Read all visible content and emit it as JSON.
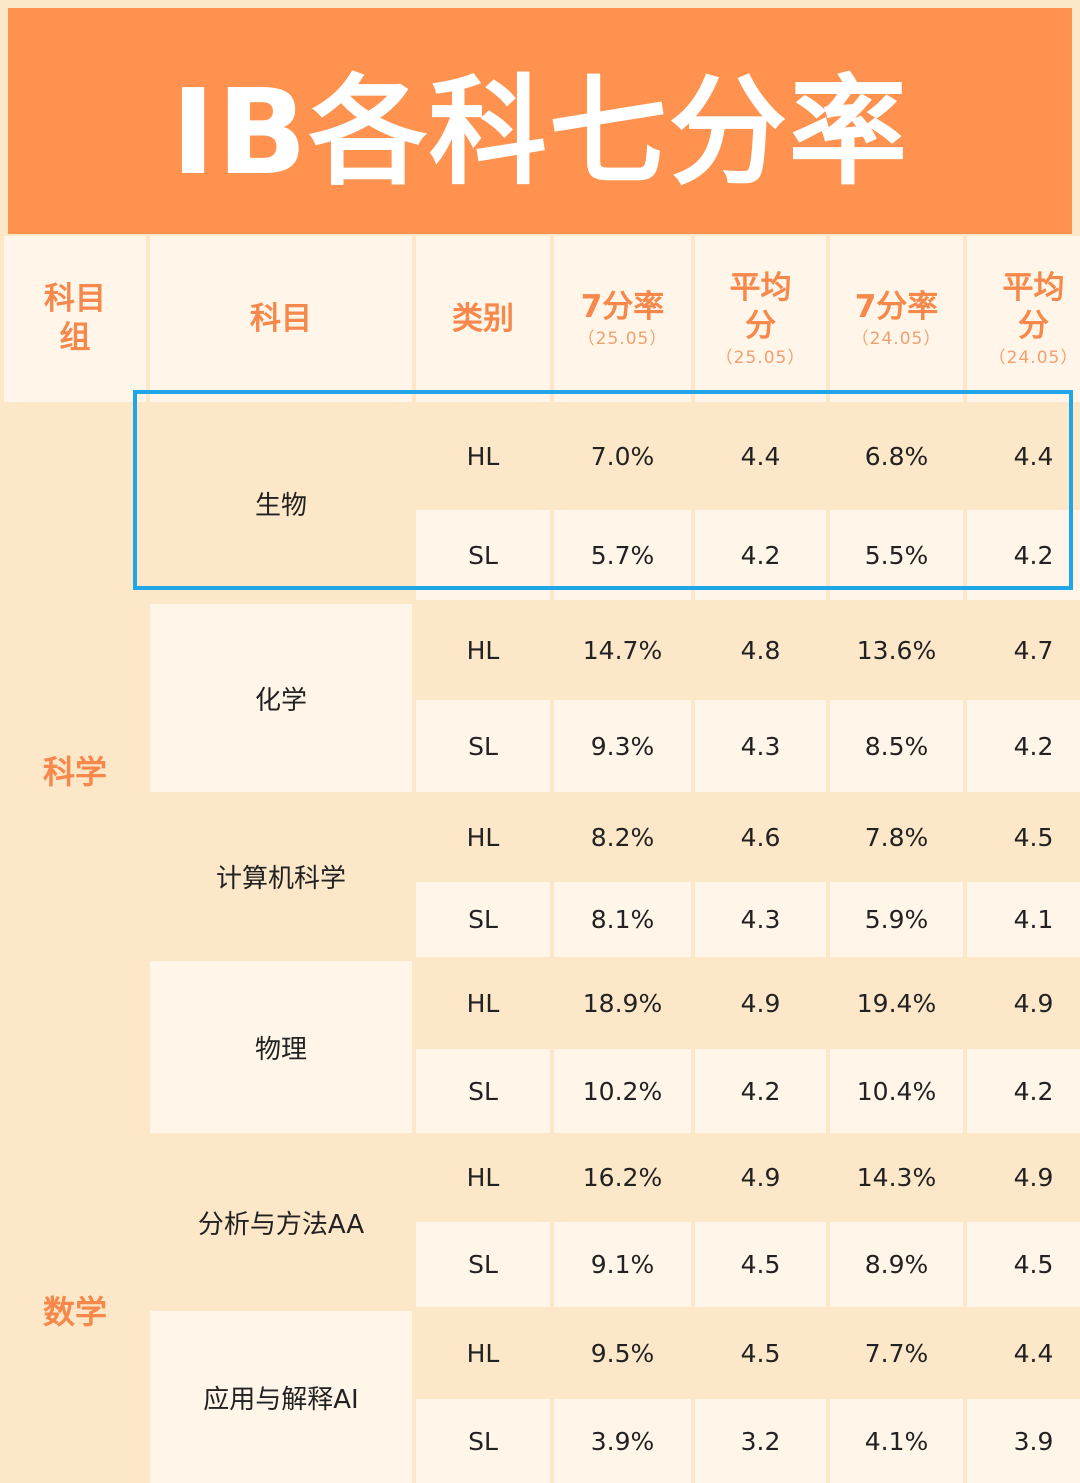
{
  "title": "IB各科七分率",
  "headers": {
    "group": "科目\n组",
    "subject": "科目",
    "category": "类别",
    "rate_2505": {
      "main": "7分率",
      "sub": "（25.05）"
    },
    "avg_2505": {
      "main": "平均\n分",
      "sub": "（25.05）"
    },
    "rate_2405": {
      "main": "7分率",
      "sub": "（24.05）"
    },
    "avg_2405": {
      "main": "平均\n分",
      "sub": "（24.05）"
    }
  },
  "groups": {
    "science": "科学",
    "math": "数学"
  },
  "subjects": [
    {
      "name": "生物",
      "rows": [
        {
          "level": "HL",
          "rate_2505": "7.0%",
          "avg_2505": "4.4",
          "rate_2405": "6.8%",
          "avg_2405": "4.4"
        },
        {
          "level": "SL",
          "rate_2505": "5.7%",
          "avg_2505": "4.2",
          "rate_2405": "5.5%",
          "avg_2405": "4.2"
        }
      ]
    },
    {
      "name": "化学",
      "rows": [
        {
          "level": "HL",
          "rate_2505": "14.7%",
          "avg_2505": "4.8",
          "rate_2405": "13.6%",
          "avg_2405": "4.7"
        },
        {
          "level": "SL",
          "rate_2505": "9.3%",
          "avg_2505": "4.3",
          "rate_2405": "8.5%",
          "avg_2405": "4.2"
        }
      ]
    },
    {
      "name": "计算机科学",
      "rows": [
        {
          "level": "HL",
          "rate_2505": "8.2%",
          "avg_2505": "4.6",
          "rate_2405": "7.8%",
          "avg_2405": "4.5"
        },
        {
          "level": "SL",
          "rate_2505": "8.1%",
          "avg_2505": "4.3",
          "rate_2405": "5.9%",
          "avg_2405": "4.1"
        }
      ]
    },
    {
      "name": "物理",
      "rows": [
        {
          "level": "HL",
          "rate_2505": "18.9%",
          "avg_2505": "4.9",
          "rate_2405": "19.4%",
          "avg_2405": "4.9"
        },
        {
          "level": "SL",
          "rate_2505": "10.2%",
          "avg_2505": "4.2",
          "rate_2405": "10.4%",
          "avg_2405": "4.2"
        }
      ]
    },
    {
      "name": "分析与方法AA",
      "rows": [
        {
          "level": "HL",
          "rate_2505": "16.2%",
          "avg_2505": "4.9",
          "rate_2405": "14.3%",
          "avg_2405": "4.9"
        },
        {
          "level": "SL",
          "rate_2505": "9.1%",
          "avg_2505": "4.5",
          "rate_2405": "8.9%",
          "avg_2405": "4.5"
        }
      ]
    },
    {
      "name": "应用与解释AI",
      "rows": [
        {
          "level": "HL",
          "rate_2505": "9.5%",
          "avg_2505": "4.5",
          "rate_2405": "7.7%",
          "avg_2405": "4.4"
        },
        {
          "level": "SL",
          "rate_2505": "3.9%",
          "avg_2505": "3.2",
          "rate_2405": "4.1%",
          "avg_2405": "3.9"
        }
      ]
    }
  ],
  "colors": {
    "title_bg": "#fe924e",
    "header_text": "#f5884a",
    "highlight_border": "#1ea6e8"
  }
}
